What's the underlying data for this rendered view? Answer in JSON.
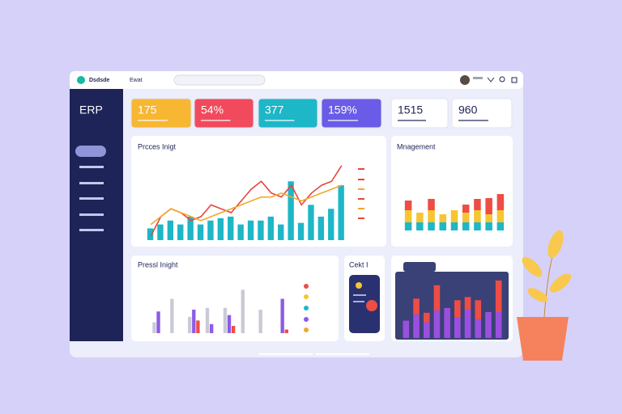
{
  "header": {
    "logo": "Dsdsde",
    "menu": "Ewat"
  },
  "sidebar": {
    "title": "ERP"
  },
  "kpis": [
    {
      "value": "175",
      "color": "#f7b733",
      "text_color": "#ffffff"
    },
    {
      "value": "54%",
      "color": "#f04a5c",
      "text_color": "#ffffff"
    },
    {
      "value": "377",
      "color": "#1db7c7",
      "text_color": "#ffffff"
    },
    {
      "value": "159%",
      "color": "#6a5ce6",
      "text_color": "#ffffff"
    },
    {
      "value": "1515",
      "color": "#ffffff",
      "text_color": "#1e2457"
    },
    {
      "value": "960",
      "color": "#ffffff",
      "text_color": "#1e2457"
    }
  ],
  "card": {
    "title": "Cekt I"
  },
  "chart_data": [
    {
      "type": "bar",
      "title": "Prcces Inigt",
      "ylim": [
        0,
        100
      ],
      "series": [
        {
          "kind": "bar",
          "color": "#1db7c7",
          "values": [
            15,
            20,
            25,
            20,
            30,
            20,
            25,
            28,
            30,
            20,
            25,
            25,
            30,
            20,
            75,
            22,
            45,
            30,
            40,
            70
          ]
        },
        {
          "kind": "line",
          "color": "#e8463c",
          "values": [
            5,
            30,
            40,
            35,
            25,
            30,
            45,
            40,
            35,
            50,
            65,
            75,
            60,
            55,
            70,
            45,
            60,
            70,
            75,
            95
          ]
        },
        {
          "kind": "line",
          "color": "#f0a92a",
          "values": [
            20,
            30,
            40,
            35,
            30,
            25,
            30,
            35,
            40,
            45,
            50,
            55,
            55,
            60,
            55,
            50,
            55,
            60,
            65,
            70
          ]
        }
      ]
    },
    {
      "type": "bar",
      "title": "Mnagement",
      "stacked": true,
      "ylim": [
        0,
        60
      ],
      "series": [
        {
          "color": "#1db7c7",
          "values": [
            10,
            10,
            10,
            10,
            10,
            10,
            10,
            10,
            10
          ]
        },
        {
          "color": "#f7c531",
          "values": [
            15,
            12,
            15,
            10,
            15,
            12,
            15,
            10,
            15
          ]
        },
        {
          "color": "#ee4d45",
          "values": [
            12,
            0,
            14,
            0,
            0,
            10,
            14,
            20,
            20
          ]
        }
      ]
    },
    {
      "type": "bar",
      "title": "Pressl Inight",
      "ylim": [
        0,
        60
      ],
      "series": [
        {
          "color": "#c9cad6",
          "values": [
            12,
            38,
            18,
            28,
            28,
            48,
            26,
            0
          ]
        },
        {
          "color": "#8b5ce6",
          "values": [
            24,
            0,
            26,
            10,
            20,
            0,
            0,
            38
          ]
        },
        {
          "color": "#ee4d45",
          "values": [
            0,
            0,
            14,
            0,
            8,
            0,
            0,
            4
          ]
        }
      ]
    },
    {
      "type": "bar",
      "stacked": true,
      "ylim": [
        0,
        75
      ],
      "series": [
        {
          "color": "#9b4fe0",
          "values": [
            22,
            30,
            20,
            35,
            38,
            26,
            36,
            24,
            33,
            33
          ]
        },
        {
          "color": "#ee4d45",
          "values": [
            0,
            20,
            12,
            32,
            0,
            22,
            16,
            24,
            0,
            40
          ]
        }
      ]
    }
  ]
}
